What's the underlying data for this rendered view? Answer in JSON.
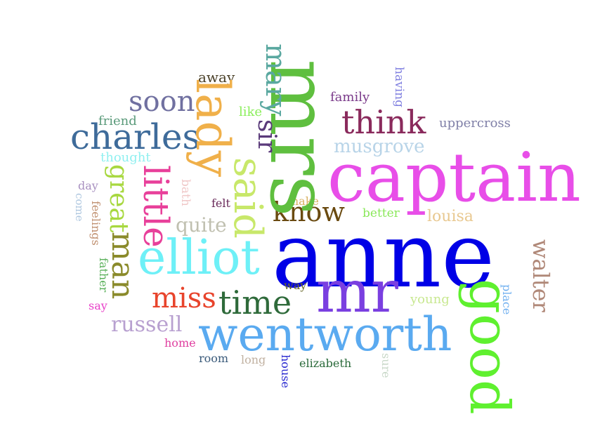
{
  "words": [
    {
      "text": "anne",
      "color": "#0000e6"
    },
    {
      "text": "captain",
      "color": "#e84ee8"
    },
    {
      "text": "mrs",
      "color": "#5fbf3f"
    },
    {
      "text": "wentworth",
      "color": "#5aaaf0"
    },
    {
      "text": "mr",
      "color": "#7a3fe0"
    },
    {
      "text": "good",
      "color": "#5ff02f"
    },
    {
      "text": "elliot",
      "color": "#6ef0f7"
    },
    {
      "text": "lady",
      "color": "#f0b04a"
    },
    {
      "text": "charles",
      "color": "#3e6b9a"
    },
    {
      "text": "said",
      "color": "#c8e86a"
    },
    {
      "text": "think",
      "color": "#8a2a5c"
    },
    {
      "text": "little",
      "color": "#e8409a"
    },
    {
      "text": "time",
      "color": "#2e6a3a"
    },
    {
      "text": "know",
      "color": "#6a4a10"
    },
    {
      "text": "miss",
      "color": "#e8442c"
    },
    {
      "text": "man",
      "color": "#8a8a2a"
    },
    {
      "text": "great",
      "color": "#a8d840"
    },
    {
      "text": "soon",
      "color": "#7070a0"
    },
    {
      "text": "mary",
      "color": "#5aa8a0"
    },
    {
      "text": "sir",
      "color": "#5a3a7a"
    },
    {
      "text": "walter",
      "color": "#b08878"
    },
    {
      "text": "russell",
      "color": "#b8a0d0"
    },
    {
      "text": "musgrove",
      "color": "#b8d4e8"
    },
    {
      "text": "quite",
      "color": "#c0c0b0"
    },
    {
      "text": "louisa",
      "color": "#e8c890"
    },
    {
      "text": "uppercross",
      "color": "#8080a8"
    },
    {
      "text": "away",
      "color": "#4a4028"
    },
    {
      "text": "family",
      "color": "#7a3a8a"
    },
    {
      "text": "having",
      "color": "#8080e0"
    },
    {
      "text": "like",
      "color": "#8aee5a"
    },
    {
      "text": "friend",
      "color": "#5a9a7a"
    },
    {
      "text": "thought",
      "color": "#90f0f0"
    },
    {
      "text": "day",
      "color": "#a890c0"
    },
    {
      "text": "come",
      "color": "#b0c8e0"
    },
    {
      "text": "bath",
      "color": "#f0c8c8"
    },
    {
      "text": "feelings",
      "color": "#c09070"
    },
    {
      "text": "felt",
      "color": "#6a2a5a"
    },
    {
      "text": "make",
      "color": "#d8b060"
    },
    {
      "text": "better",
      "color": "#8ae85a"
    },
    {
      "text": "father",
      "color": "#5ab05a"
    },
    {
      "text": "say",
      "color": "#e840c8"
    },
    {
      "text": "way",
      "color": "#6a6a2a"
    },
    {
      "text": "young",
      "color": "#c8e890"
    },
    {
      "text": "place",
      "color": "#70b0f0"
    },
    {
      "text": "home",
      "color": "#e040a0"
    },
    {
      "text": "room",
      "color": "#3a5a7a"
    },
    {
      "text": "long",
      "color": "#c0b0a0"
    },
    {
      "text": "house",
      "color": "#2a2ad0"
    },
    {
      "text": "elizabeth",
      "color": "#2a6a3a"
    },
    {
      "text": "sure",
      "color": "#c8d8c8"
    }
  ]
}
